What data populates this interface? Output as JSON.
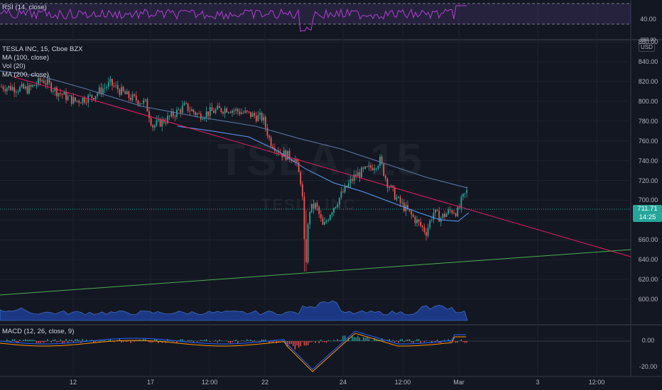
{
  "symbol": {
    "name": "TESLA INC",
    "interval": "15",
    "exchange": "Cboe BZX",
    "title_line": "TESLA INC, 15, Cboe BZX"
  },
  "watermark": {
    "big": "TSLA, 15",
    "small": "TESLA INC"
  },
  "indicators": {
    "rsi": "RSI (14, close)",
    "ma100": "MA (100, close)",
    "vol": "Vol (20)",
    "ma200": "MA (200, close)",
    "macd": "MACD (12, 26, close, 9)"
  },
  "price_axis": {
    "currency": "USD",
    "ticks": [
      "860.00",
      "840.00",
      "820.00",
      "800.00",
      "780.00",
      "760.00",
      "740.00",
      "720.00",
      "700.00",
      "680.00",
      "660.00",
      "640.00",
      "620.00",
      "600.00"
    ],
    "top_partial": "880.00"
  },
  "rsi_axis": {
    "ticks": [
      "40.00"
    ]
  },
  "macd_axis": {
    "ticks": [
      "0.00",
      "-20.00"
    ]
  },
  "time_axis": {
    "labels": [
      "12",
      "17",
      "12:00",
      "22",
      "24",
      "12:00",
      "Mar",
      "3",
      "12:00"
    ]
  },
  "last_price": {
    "value": "711.71",
    "countdown": "14:25"
  },
  "colors": {
    "background": "#131722",
    "up": "#26a69a",
    "down": "#ef5350",
    "ma100": "#5b9cf6",
    "ma200": "#5b7aa8",
    "trend_red": "#e91e63",
    "trend_green": "#4caf50",
    "rsi": "#b040d0",
    "volume": "#2962ff"
  }
}
